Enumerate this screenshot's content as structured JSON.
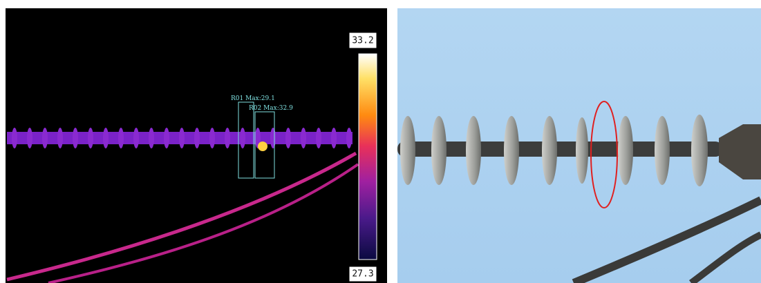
{
  "thermal_image": {
    "scale_max": "33.2",
    "scale_min": "27.3",
    "regions": [
      {
        "label": "R01 Max:29.1"
      },
      {
        "label": "R02 Max:32.9"
      }
    ]
  }
}
